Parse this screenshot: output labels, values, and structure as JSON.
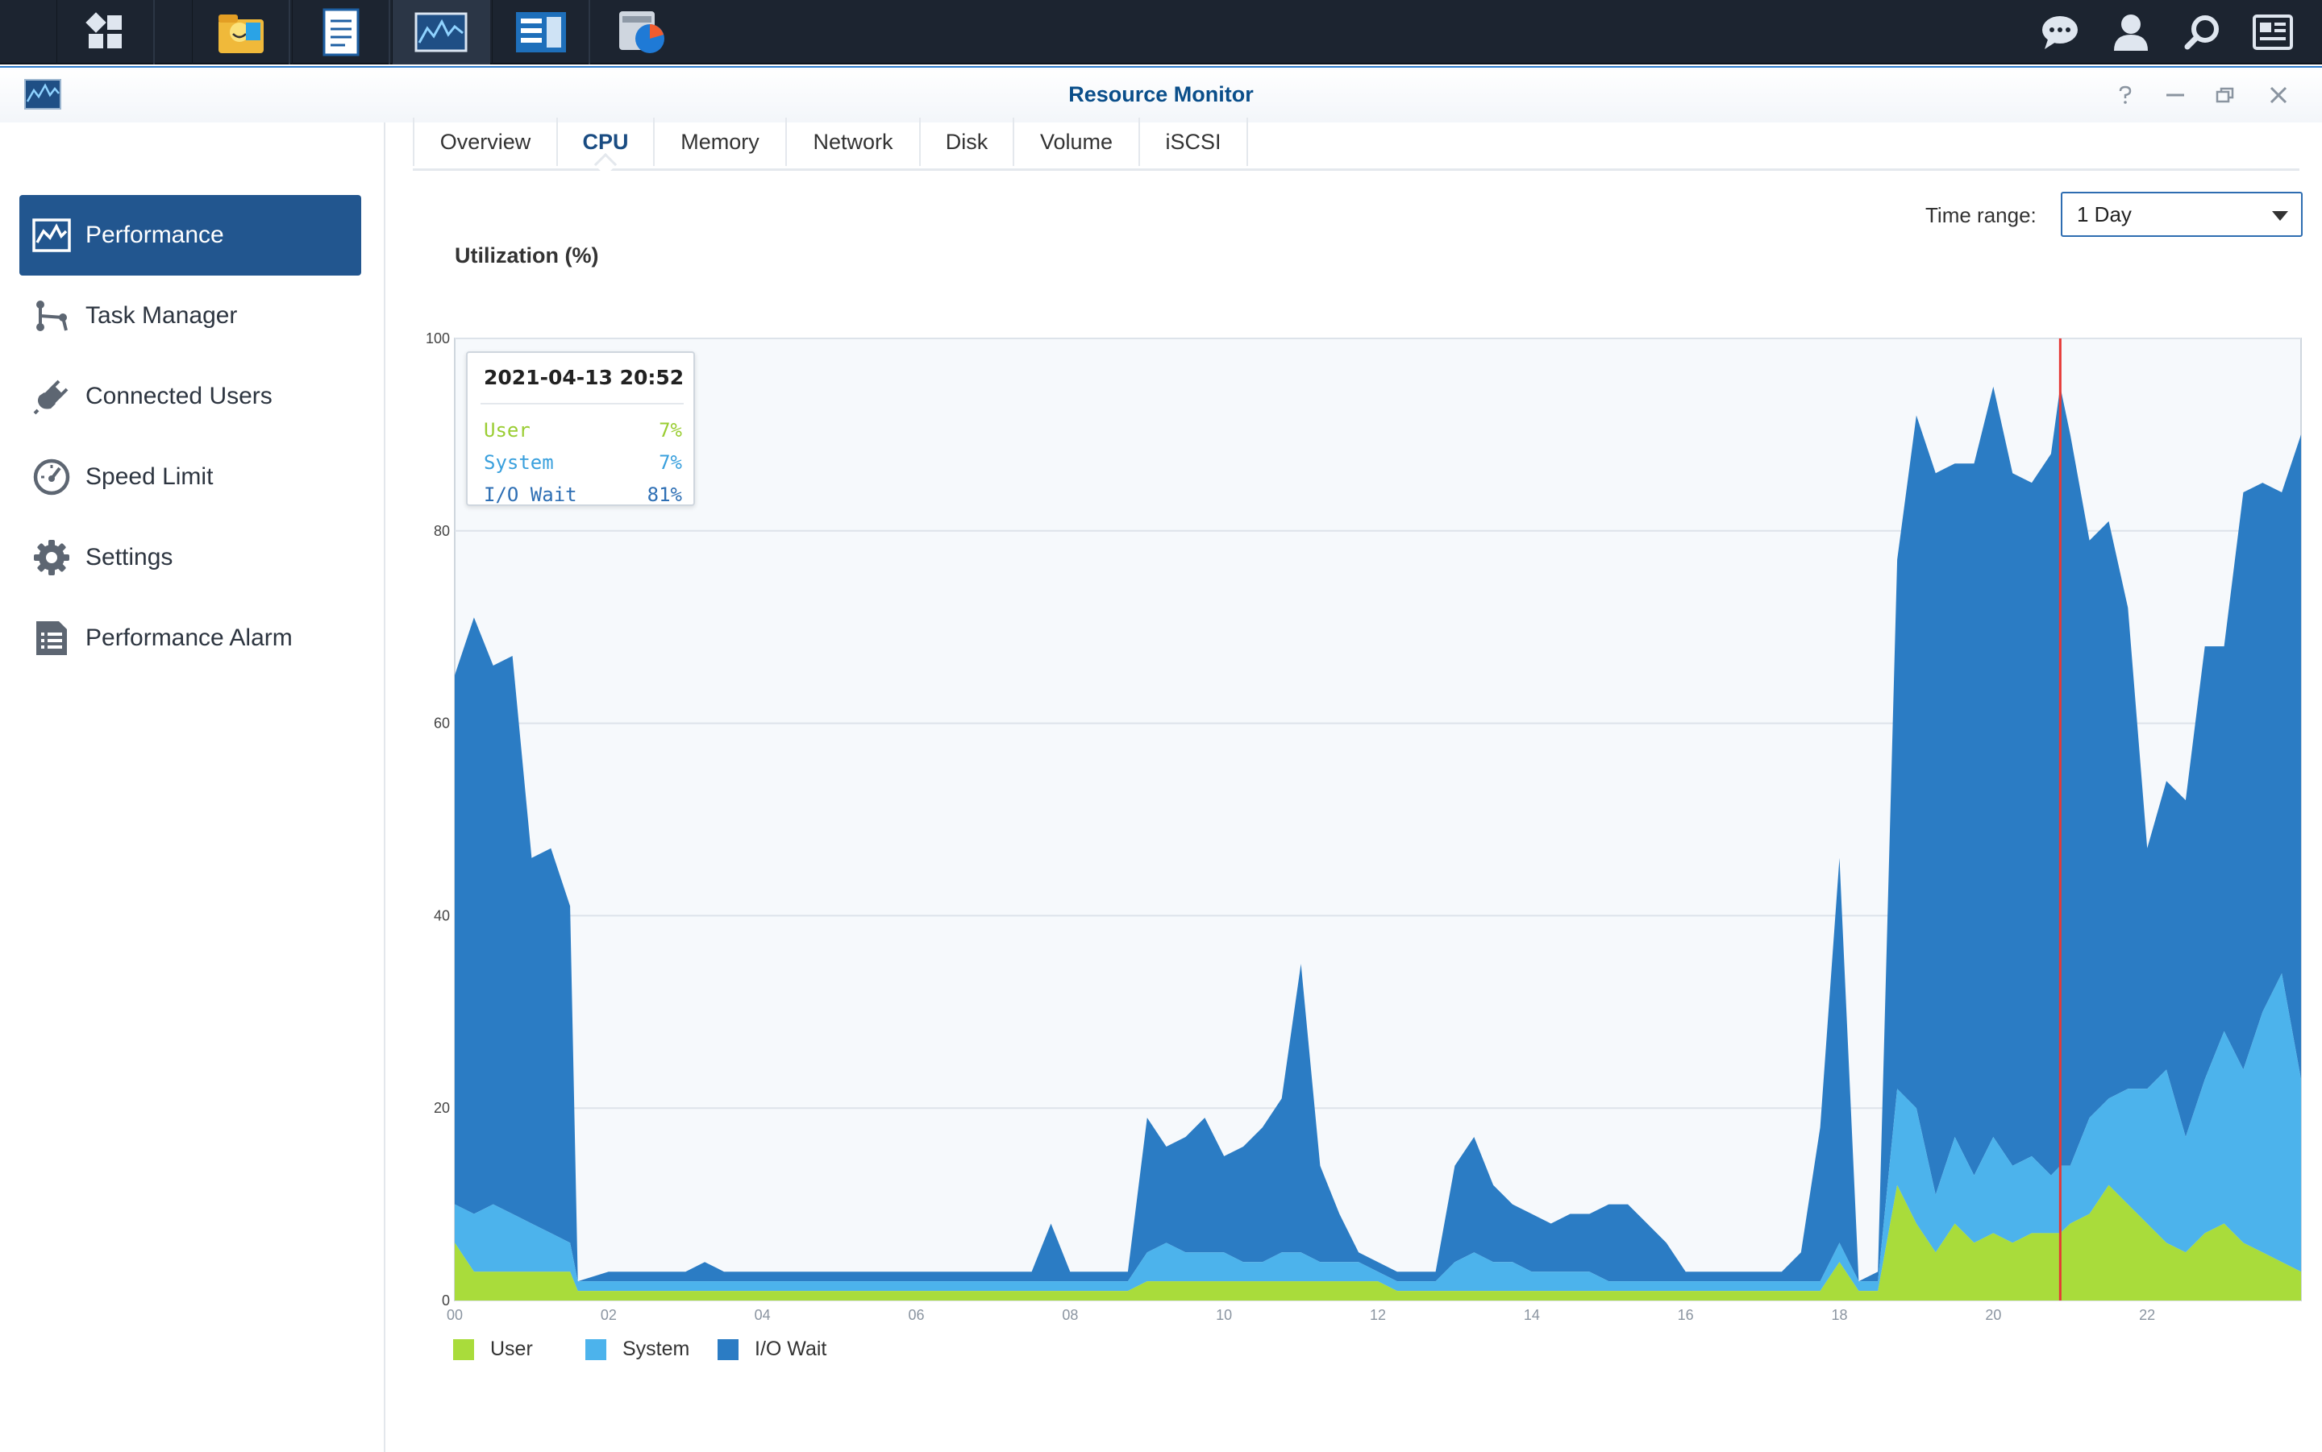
{
  "taskbar": {
    "apps": [
      {
        "name": "main-menu-icon"
      },
      {
        "name": "file-station-icon"
      },
      {
        "name": "notes-icon"
      },
      {
        "name": "resource-monitor-icon"
      },
      {
        "name": "storage-manager-icon"
      },
      {
        "name": "disk-usage-icon"
      }
    ],
    "right": [
      "chat-icon",
      "user-icon",
      "search-icon",
      "widgets-icon"
    ]
  },
  "window": {
    "title": "Resource Monitor",
    "controls": [
      "help-icon",
      "minimize-icon",
      "restore-icon",
      "close-icon"
    ]
  },
  "sidebar": {
    "items": [
      {
        "label": "Performance",
        "icon": "performance-icon",
        "active": true
      },
      {
        "label": "Task Manager",
        "icon": "task-manager-icon",
        "active": false
      },
      {
        "label": "Connected Users",
        "icon": "plug-icon",
        "active": false
      },
      {
        "label": "Speed Limit",
        "icon": "speedometer-icon",
        "active": false
      },
      {
        "label": "Settings",
        "icon": "gear-icon",
        "active": false
      },
      {
        "label": "Performance Alarm",
        "icon": "alarm-list-icon",
        "active": false
      }
    ]
  },
  "tabs": [
    {
      "label": "Overview",
      "active": false
    },
    {
      "label": "CPU",
      "active": true
    },
    {
      "label": "Memory",
      "active": false
    },
    {
      "label": "Network",
      "active": false
    },
    {
      "label": "Disk",
      "active": false
    },
    {
      "label": "Volume",
      "active": false
    },
    {
      "label": "iSCSI",
      "active": false
    }
  ],
  "time_range": {
    "label": "Time range:",
    "value": "1 Day"
  },
  "tooltip": {
    "title": "2021-04-13 20:52",
    "rows": [
      {
        "label": "User",
        "value": "7%",
        "color": "#9acd32"
      },
      {
        "label": "System",
        "value": "7%",
        "color": "#3aa0dd"
      },
      {
        "label": "I/O Wait",
        "value": "81%",
        "color": "#2e6fb4"
      }
    ]
  },
  "colors": {
    "user": "#a9dc3b",
    "system": "#4cb3ec",
    "iowait": "#2b7cc4",
    "cursor": "#e53935",
    "accent": "#22568f"
  },
  "chart_data": {
    "type": "area",
    "stacked": true,
    "title": "Utilization (%)",
    "ylim": [
      0,
      100
    ],
    "yticks": [
      0,
      20,
      40,
      60,
      80,
      100
    ],
    "xlim": [
      0,
      24
    ],
    "xticks": [
      "00",
      "02",
      "04",
      "06",
      "08",
      "10",
      "12",
      "14",
      "16",
      "18",
      "20",
      "22"
    ],
    "x_hours": [
      0,
      0.25,
      0.5,
      0.75,
      1,
      1.25,
      1.5,
      1.6,
      2,
      2.25,
      2.5,
      2.75,
      3,
      3.25,
      3.5,
      3.75,
      4,
      4.25,
      4.5,
      4.75,
      5,
      5.25,
      5.5,
      5.75,
      6,
      6.25,
      6.5,
      6.75,
      7,
      7.25,
      7.5,
      7.75,
      8,
      8.25,
      8.5,
      8.75,
      9,
      9.25,
      9.5,
      9.75,
      10,
      10.25,
      10.5,
      10.75,
      11,
      11.25,
      11.5,
      11.75,
      12,
      12.25,
      12.5,
      12.75,
      13,
      13.25,
      13.5,
      13.75,
      14,
      14.25,
      14.5,
      14.75,
      15,
      15.25,
      15.5,
      15.75,
      16,
      16.25,
      16.5,
      16.75,
      17,
      17.25,
      17.5,
      17.75,
      18,
      18.25,
      18.5,
      18.75,
      19,
      19.25,
      19.5,
      19.75,
      20,
      20.25,
      20.5,
      20.75,
      20.87,
      21,
      21.25,
      21.5,
      21.75,
      22,
      22.25,
      22.5,
      22.75,
      23,
      23.25,
      23.5,
      23.75,
      24
    ],
    "series": [
      {
        "name": "User",
        "values": [
          6,
          3,
          3,
          3,
          3,
          3,
          3,
          1,
          1,
          1,
          1,
          1,
          1,
          1,
          1,
          1,
          1,
          1,
          1,
          1,
          1,
          1,
          1,
          1,
          1,
          1,
          1,
          1,
          1,
          1,
          1,
          1,
          1,
          1,
          1,
          1,
          2,
          2,
          2,
          2,
          2,
          2,
          2,
          2,
          2,
          2,
          2,
          2,
          2,
          1,
          1,
          1,
          1,
          1,
          1,
          1,
          1,
          1,
          1,
          1,
          1,
          1,
          1,
          1,
          1,
          1,
          1,
          1,
          1,
          1,
          1,
          1,
          4,
          1,
          1,
          12,
          8,
          5,
          8,
          6,
          7,
          6,
          7,
          7,
          7,
          8,
          9,
          12,
          10,
          8,
          6,
          5,
          7,
          8,
          6,
          5,
          4,
          3
        ]
      },
      {
        "name": "System",
        "values": [
          4,
          6,
          7,
          6,
          5,
          4,
          3,
          1,
          1,
          1,
          1,
          1,
          1,
          1,
          1,
          1,
          1,
          1,
          1,
          1,
          1,
          1,
          1,
          1,
          1,
          1,
          1,
          1,
          1,
          1,
          1,
          1,
          1,
          1,
          1,
          1,
          3,
          4,
          3,
          3,
          3,
          2,
          2,
          3,
          3,
          2,
          2,
          2,
          1,
          1,
          1,
          1,
          3,
          4,
          3,
          3,
          2,
          2,
          2,
          2,
          1,
          1,
          1,
          1,
          1,
          1,
          1,
          1,
          1,
          1,
          1,
          1,
          2,
          1,
          1,
          10,
          12,
          6,
          9,
          7,
          10,
          8,
          8,
          6,
          7,
          6,
          10,
          9,
          12,
          14,
          18,
          12,
          16,
          20,
          18,
          25,
          30,
          20
        ]
      },
      {
        "name": "I/O Wait",
        "values": [
          55,
          62,
          56,
          58,
          38,
          40,
          35,
          0,
          1,
          1,
          1,
          1,
          1,
          2,
          1,
          1,
          1,
          1,
          1,
          1,
          1,
          1,
          1,
          1,
          1,
          1,
          1,
          1,
          1,
          1,
          1,
          6,
          1,
          1,
          1,
          1,
          14,
          10,
          12,
          14,
          10,
          12,
          14,
          16,
          30,
          10,
          5,
          1,
          1,
          1,
          1,
          1,
          10,
          12,
          8,
          6,
          6,
          5,
          6,
          6,
          8,
          8,
          6,
          4,
          1,
          1,
          1,
          1,
          1,
          1,
          3,
          16,
          40,
          0,
          1,
          55,
          72,
          75,
          70,
          74,
          78,
          72,
          70,
          75,
          81,
          76,
          60,
          60,
          50,
          25,
          30,
          35,
          45,
          40,
          60,
          55,
          50,
          67
        ]
      }
    ],
    "cursor_hour": 20.87,
    "legend": [
      "User",
      "System",
      "I/O Wait"
    ],
    "legend_position": "bottom-left",
    "grid": true
  }
}
